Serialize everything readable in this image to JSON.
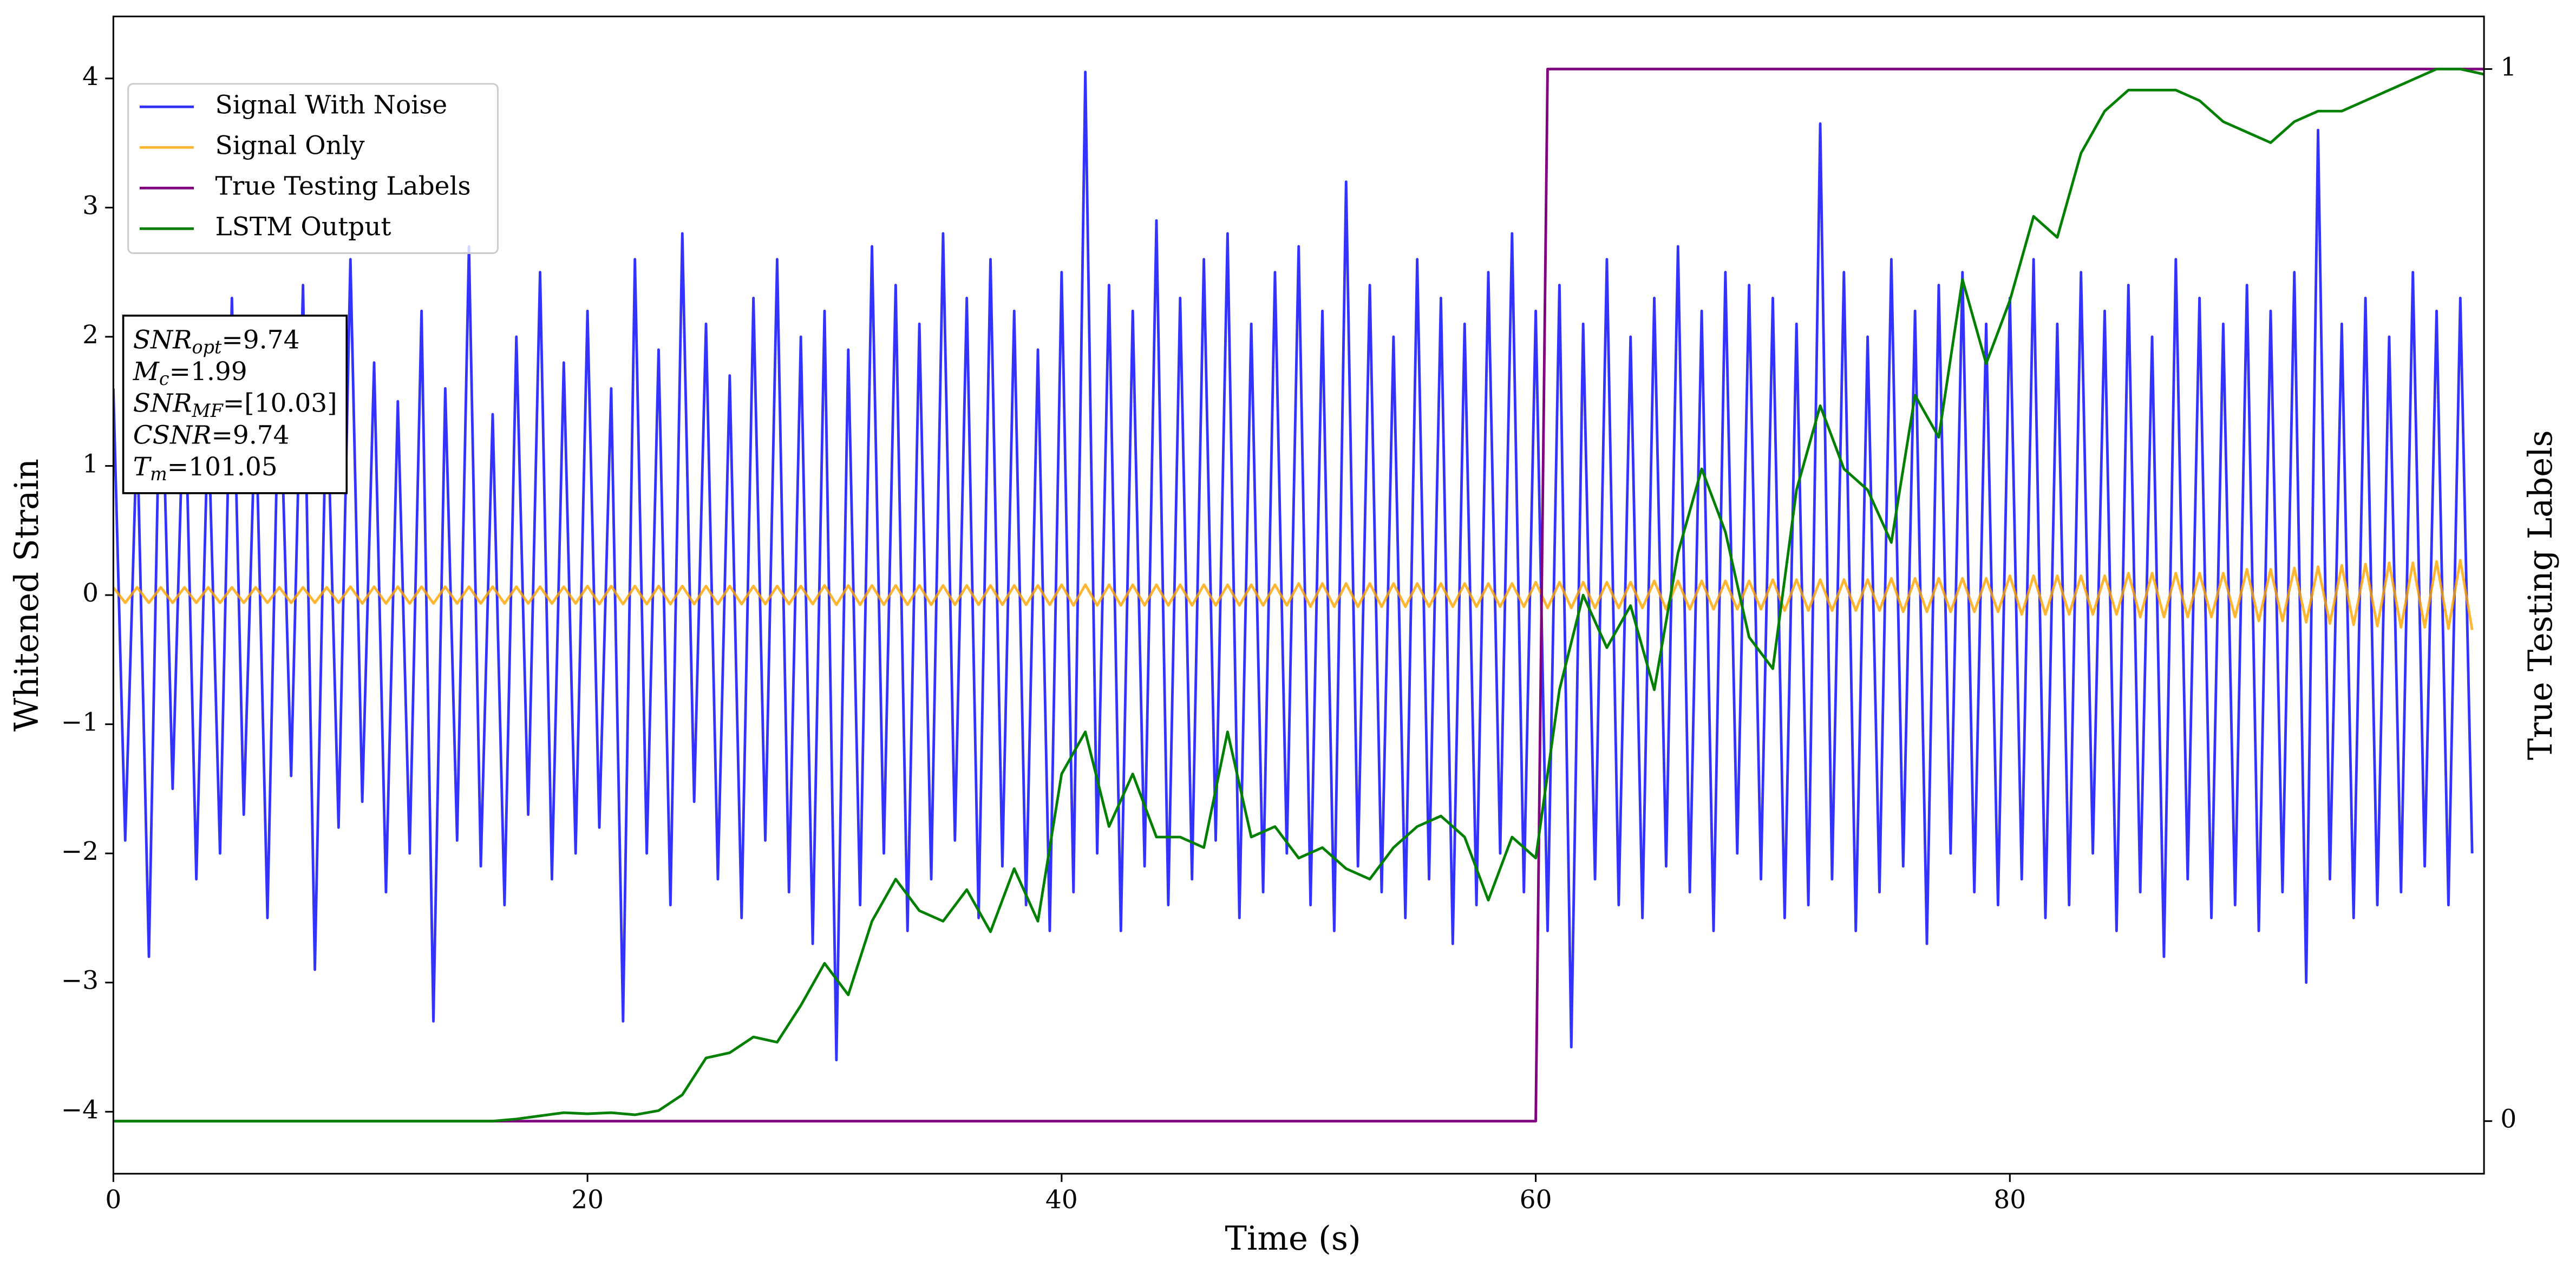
{
  "chart_data": {
    "type": "line",
    "xlabel": "Time (s)",
    "ylabel": "Whitened Strain",
    "y2label": "True Testing Labels",
    "xlim": [
      0,
      100
    ],
    "xticks": [
      0,
      20,
      40,
      60,
      80
    ],
    "ylim": [
      -4.48,
      4.48
    ],
    "yticks": [
      {
        "value": -4,
        "label": "−4"
      },
      {
        "value": -3,
        "label": "−3"
      },
      {
        "value": -2,
        "label": "−2"
      },
      {
        "value": -1,
        "label": "−1"
      },
      0,
      1,
      2,
      3,
      4
    ],
    "y2lim": [
      -0.05,
      1.05
    ],
    "y2ticks": [
      0,
      1
    ],
    "legend": "upper left",
    "x": [
      0,
      0.5,
      1,
      1.5,
      2,
      2.5,
      3,
      3.5,
      4,
      4.5,
      5,
      5.5,
      6,
      6.5,
      7,
      7.5,
      8,
      8.5,
      9,
      9.5,
      10,
      10.5,
      11,
      11.5,
      12,
      12.5,
      13,
      13.5,
      14,
      14.5,
      15,
      15.5,
      16,
      16.5,
      17,
      17.5,
      18,
      18.5,
      19,
      19.5,
      20,
      20.5,
      21,
      21.5,
      22,
      22.5,
      23,
      23.5,
      24,
      24.5,
      25,
      25.5,
      26,
      26.5,
      27,
      27.5,
      28,
      28.5,
      29,
      29.5,
      30,
      30.5,
      31,
      31.5,
      32,
      32.5,
      33,
      33.5,
      34,
      34.5,
      35,
      35.5,
      36,
      36.5,
      37,
      37.5,
      38,
      38.5,
      39,
      39.5,
      40,
      40.5,
      41,
      41.5,
      42,
      42.5,
      43,
      43.5,
      44,
      44.5,
      45,
      45.5,
      46,
      46.5,
      47,
      47.5,
      48,
      48.5,
      49,
      49.5,
      50,
      50.5,
      51,
      51.5,
      52,
      52.5,
      53,
      53.5,
      54,
      54.5,
      55,
      55.5,
      56,
      56.5,
      57,
      57.5,
      58,
      58.5,
      59,
      59.5,
      60,
      60.5,
      61,
      61.5,
      62,
      62.5,
      63,
      63.5,
      64,
      64.5,
      65,
      65.5,
      66,
      66.5,
      67,
      67.5,
      68,
      68.5,
      69,
      69.5,
      70,
      70.5,
      71,
      71.5,
      72,
      72.5,
      73,
      73.5,
      74,
      74.5,
      75,
      75.5,
      76,
      76.5,
      77,
      77.5,
      78,
      78.5,
      79,
      79.5,
      80,
      80.5,
      81,
      81.5,
      82,
      82.5,
      83,
      83.5,
      84,
      84.5,
      85,
      85.5,
      86,
      86.5,
      87,
      87.5,
      88,
      88.5,
      89,
      89.5,
      90,
      90.5,
      91,
      91.5,
      92,
      92.5,
      93,
      93.5,
      94,
      94.5,
      95,
      95.5,
      96,
      96.5,
      97,
      97.5,
      98,
      98.5,
      99,
      99.5
    ],
    "series": [
      {
        "name": "Signal With Noise",
        "color": "blue",
        "alpha": 0.8,
        "values": [
          1.6,
          -1.9,
          1.3,
          -2.8,
          2.1,
          -1.5,
          1.8,
          -2.2,
          1.4,
          -2.0,
          2.3,
          -1.7,
          1.5,
          -2.5,
          1.9,
          -1.4,
          2.4,
          -2.9,
          1.7,
          -1.8,
          2.6,
          -1.6,
          1.8,
          -2.3,
          1.5,
          -2.0,
          2.2,
          -3.3,
          1.6,
          -1.9,
          2.7,
          -2.1,
          1.4,
          -2.4,
          2.0,
          -1.7,
          2.5,
          -2.2,
          1.8,
          -2.0,
          2.2,
          -1.8,
          1.6,
          -3.3,
          2.6,
          -2.0,
          1.9,
          -2.4,
          2.8,
          -1.6,
          2.1,
          -2.2,
          1.7,
          -2.5,
          2.3,
          -1.9,
          2.6,
          -2.3,
          2.0,
          -2.7,
          2.2,
          -3.6,
          1.9,
          -2.4,
          2.7,
          -2.0,
          2.4,
          -2.6,
          2.1,
          -2.2,
          2.8,
          -1.9,
          2.3,
          -2.5,
          2.6,
          -2.1,
          2.2,
          -2.4,
          1.9,
          -2.6,
          2.5,
          -2.3,
          4.05,
          -2.0,
          2.4,
          -2.6,
          2.2,
          -2.1,
          2.9,
          -2.4,
          2.3,
          -2.2,
          2.6,
          -1.9,
          2.8,
          -2.5,
          2.1,
          -2.3,
          2.5,
          -2.0,
          2.7,
          -2.4,
          2.2,
          -2.6,
          3.2,
          -2.1,
          2.4,
          -2.3,
          2.0,
          -2.5,
          2.6,
          -2.2,
          2.3,
          -2.7,
          2.1,
          -2.4,
          2.5,
          -2.0,
          2.8,
          -2.3,
          2.2,
          -2.6,
          2.4,
          -3.5,
          2.1,
          -2.2,
          2.6,
          -2.4,
          2.0,
          -2.5,
          2.3,
          -2.1,
          2.7,
          -2.3,
          2.2,
          -2.6,
          2.5,
          -2.0,
          2.4,
          -2.2,
          2.3,
          -2.5,
          2.1,
          -2.4,
          3.65,
          -2.2,
          2.5,
          -2.6,
          2.0,
          -2.3,
          2.6,
          -2.1,
          2.2,
          -2.7,
          2.4,
          -2.0,
          2.5,
          -2.3,
          2.1,
          -2.4,
          2.3,
          -2.2,
          2.6,
          -2.5,
          2.1,
          -2.4,
          2.5,
          -2.0,
          2.2,
          -2.6,
          2.4,
          -2.3,
          2.0,
          -2.8,
          2.6,
          -2.2,
          2.3,
          -2.5,
          2.1,
          -2.4,
          2.4,
          -2.6,
          2.2,
          -2.3,
          2.5,
          -3.0,
          3.6,
          -2.2,
          2.1,
          -2.5,
          2.3,
          -2.4,
          2.0,
          -2.3,
          2.5,
          -2.1,
          2.2,
          -2.4,
          2.3,
          -2.0
        ]
      },
      {
        "name": "Signal Only",
        "color": "orange",
        "alpha": 0.8,
        "values": [
          0.06,
          -0.06,
          0.06,
          -0.06,
          0.06,
          -0.06,
          0.06,
          -0.06,
          0.06,
          -0.06,
          0.06,
          -0.06,
          0.06,
          -0.06,
          0.06,
          -0.06,
          0.06,
          -0.06,
          0.06,
          -0.06,
          0.065,
          -0.065,
          0.065,
          -0.065,
          0.065,
          -0.065,
          0.065,
          -0.065,
          0.065,
          -0.065,
          0.065,
          -0.065,
          0.065,
          -0.065,
          0.065,
          -0.065,
          0.065,
          -0.065,
          0.065,
          -0.065,
          0.07,
          -0.07,
          0.07,
          -0.07,
          0.07,
          -0.07,
          0.07,
          -0.07,
          0.07,
          -0.07,
          0.07,
          -0.07,
          0.07,
          -0.07,
          0.07,
          -0.07,
          0.07,
          -0.07,
          0.07,
          -0.07,
          0.075,
          -0.075,
          0.075,
          -0.075,
          0.075,
          -0.075,
          0.075,
          -0.075,
          0.075,
          -0.075,
          0.075,
          -0.075,
          0.075,
          -0.075,
          0.075,
          -0.075,
          0.075,
          -0.075,
          0.075,
          -0.075,
          0.08,
          -0.08,
          0.08,
          -0.08,
          0.08,
          -0.08,
          0.08,
          -0.08,
          0.08,
          -0.08,
          0.08,
          -0.08,
          0.08,
          -0.08,
          0.08,
          -0.08,
          0.08,
          -0.08,
          0.08,
          -0.08,
          0.09,
          -0.09,
          0.09,
          -0.09,
          0.09,
          -0.09,
          0.09,
          -0.09,
          0.09,
          -0.09,
          0.09,
          -0.09,
          0.09,
          -0.09,
          0.09,
          -0.09,
          0.09,
          -0.09,
          0.09,
          -0.09,
          0.1,
          -0.1,
          0.1,
          -0.1,
          0.1,
          -0.1,
          0.1,
          -0.1,
          0.1,
          -0.1,
          0.11,
          -0.11,
          0.11,
          -0.11,
          0.11,
          -0.11,
          0.11,
          -0.11,
          0.11,
          -0.11,
          0.12,
          -0.12,
          0.12,
          -0.12,
          0.12,
          -0.12,
          0.12,
          -0.12,
          0.12,
          -0.12,
          0.13,
          -0.13,
          0.13,
          -0.13,
          0.13,
          -0.13,
          0.13,
          -0.13,
          0.13,
          -0.13,
          0.15,
          -0.15,
          0.15,
          -0.15,
          0.15,
          -0.15,
          0.15,
          -0.15,
          0.15,
          -0.15,
          0.17,
          -0.17,
          0.17,
          -0.17,
          0.17,
          -0.17,
          0.17,
          -0.17,
          0.17,
          -0.17,
          0.2,
          -0.2,
          0.2,
          -0.2,
          0.21,
          -0.21,
          0.22,
          -0.22,
          0.23,
          -0.23,
          0.24,
          -0.24,
          0.25,
          -0.25,
          0.25,
          -0.25,
          0.26,
          -0.26,
          0.27,
          -0.27
        ]
      },
      {
        "name": "True Testing Labels",
        "color": "purple",
        "axis": "y2",
        "x": [
          0,
          60,
          60.5,
          100
        ],
        "values": [
          0,
          0,
          1,
          1
        ]
      },
      {
        "name": "LSTM Output",
        "color": "green",
        "axis": "y2",
        "x": [
          0,
          1,
          2,
          3,
          4,
          5,
          6,
          7,
          8,
          9,
          10,
          11,
          12,
          13,
          14,
          15,
          16,
          17,
          18,
          19,
          20,
          21,
          22,
          23,
          24,
          25,
          26,
          27,
          28,
          29,
          30,
          31,
          32,
          33,
          34,
          35,
          36,
          37,
          38,
          39,
          40,
          41,
          42,
          43,
          44,
          45,
          46,
          47,
          48,
          49,
          50,
          51,
          52,
          53,
          54,
          55,
          56,
          57,
          58,
          59,
          60,
          61,
          62,
          63,
          64,
          65,
          66,
          67,
          68,
          69,
          70,
          71,
          72,
          73,
          74,
          75,
          76,
          77,
          78,
          79,
          80,
          81,
          82,
          83,
          84,
          85,
          86,
          87,
          88,
          89,
          90,
          91,
          92,
          93,
          94,
          95,
          96,
          97,
          98,
          99,
          100
        ],
        "values": [
          0,
          0,
          0,
          0,
          0,
          0,
          0,
          0,
          0,
          0,
          0,
          0,
          0,
          0,
          0,
          0,
          0,
          0.002,
          0.005,
          0.008,
          0.007,
          0.008,
          0.006,
          0.01,
          0.025,
          0.06,
          0.065,
          0.08,
          0.075,
          0.11,
          0.15,
          0.12,
          0.19,
          0.23,
          0.2,
          0.19,
          0.22,
          0.18,
          0.24,
          0.19,
          0.33,
          0.37,
          0.28,
          0.33,
          0.27,
          0.27,
          0.26,
          0.37,
          0.27,
          0.28,
          0.25,
          0.26,
          0.24,
          0.23,
          0.26,
          0.28,
          0.29,
          0.27,
          0.21,
          0.27,
          0.25,
          0.41,
          0.5,
          0.45,
          0.49,
          0.41,
          0.54,
          0.62,
          0.56,
          0.46,
          0.43,
          0.6,
          0.68,
          0.62,
          0.6,
          0.55,
          0.69,
          0.65,
          0.8,
          0.72,
          0.78,
          0.86,
          0.84,
          0.92,
          0.96,
          0.98,
          0.98,
          0.98,
          0.97,
          0.95,
          0.94,
          0.93,
          0.95,
          0.96,
          0.96,
          0.97,
          0.98,
          0.99,
          1.0,
          1.0,
          0.995
        ]
      }
    ],
    "textbox": [
      {
        "main": "SNR",
        "sub": "opt",
        "rest": "=9.74"
      },
      {
        "main": "M",
        "sub": "c",
        "rest": "=1.99"
      },
      {
        "main": "SNR",
        "sub": "MF",
        "rest": "=[10.03]"
      },
      {
        "main": "CSNR",
        "rest": "=9.74"
      },
      {
        "main": "T",
        "sub": "m",
        "rest": "=101.05"
      }
    ]
  }
}
